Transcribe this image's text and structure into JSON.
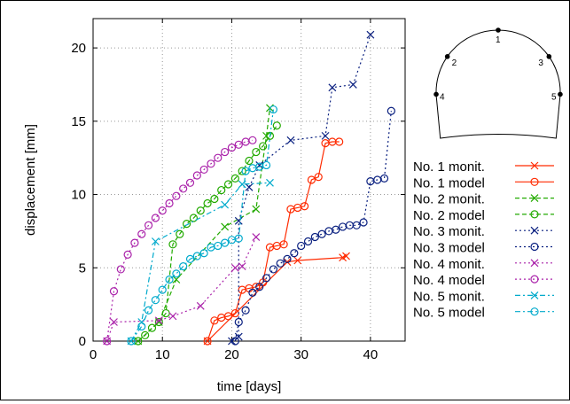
{
  "chart_data": {
    "type": "line",
    "xlabel": "time [days]",
    "ylabel": "displacement [mm]",
    "xlim": [
      0,
      45
    ],
    "ylim": [
      0,
      22
    ],
    "xticks": [
      0,
      10,
      20,
      30,
      40
    ],
    "yticks": [
      0,
      5,
      10,
      15,
      20
    ],
    "grid": true,
    "legend_position": "right",
    "series": [
      {
        "name": "No. 1 monit.",
        "color": "#ff2a00",
        "marker": "x",
        "dash": "solid",
        "x": [
          16.5,
          28,
          29.5,
          36,
          36.5
        ],
        "y": [
          0,
          5.4,
          5.5,
          5.7,
          5.8
        ]
      },
      {
        "name": "No. 1 model",
        "color": "#ff2a00",
        "marker": "o",
        "dash": "solid",
        "x": [
          16.5,
          17.5,
          18.5,
          19.5,
          20.5,
          21.5,
          22.5,
          23.5,
          24.5,
          25.5,
          26.5,
          27.5,
          28.5,
          29.5,
          30.5,
          31.5,
          32.5,
          33.5,
          34.5,
          35.5
        ],
        "y": [
          0,
          1.4,
          1.6,
          1.7,
          1.9,
          3.5,
          3.6,
          3.7,
          4.0,
          6.4,
          6.5,
          6.6,
          9.0,
          9.1,
          9.2,
          11.0,
          11.2,
          13.5,
          13.6,
          13.6
        ]
      },
      {
        "name": "No. 2 monit.",
        "color": "#22aa00",
        "marker": "x",
        "dash": "dash",
        "x": [
          6.5,
          9.5,
          12.0,
          19.0,
          23.5,
          25.0,
          25.5
        ],
        "y": [
          0,
          1.3,
          4.2,
          7.8,
          9.0,
          14.0,
          15.9
        ]
      },
      {
        "name": "No. 2 model",
        "color": "#22aa00",
        "marker": "o",
        "dash": "dash",
        "x": [
          6.5,
          7.5,
          8.5,
          9.5,
          10.5,
          11.5,
          12.5,
          13.5,
          14.5,
          15.5,
          16.5,
          17.5,
          18.5,
          19.5,
          20.5,
          21.5,
          22.5,
          23.5,
          24.5,
          25.5,
          26.5
        ],
        "y": [
          0,
          0.4,
          0.9,
          1.3,
          1.9,
          6.6,
          7.3,
          8.0,
          8.4,
          8.9,
          9.4,
          9.7,
          10.3,
          10.7,
          11.1,
          11.6,
          12.3,
          12.9,
          13.3,
          14.0,
          14.7
        ]
      },
      {
        "name": "No. 3 monit.",
        "color": "#0a2080",
        "marker": "x",
        "dash": "dot",
        "x": [
          20.0,
          21.0,
          21.0,
          22.5,
          24.0,
          28.5,
          33.5,
          34.5,
          37.5,
          40.0
        ],
        "y": [
          0,
          0.3,
          8.2,
          10.5,
          12.0,
          13.7,
          14.0,
          17.3,
          17.5,
          20.9
        ]
      },
      {
        "name": "No. 3 model",
        "color": "#0a2080",
        "marker": "o",
        "dash": "dot",
        "x": [
          20.5,
          21.0,
          22.0,
          23.0,
          24.0,
          25.0,
          26.0,
          27.0,
          28.0,
          29.0,
          30.0,
          31.0,
          32.0,
          33.0,
          34.0,
          35.0,
          36.0,
          37.0,
          38.0,
          39.0,
          40.0,
          41.0,
          42.0,
          43.0
        ],
        "y": [
          0,
          1.3,
          2.1,
          3.3,
          3.7,
          4.3,
          4.9,
          5.3,
          5.6,
          6.0,
          6.5,
          6.8,
          7.1,
          7.3,
          7.5,
          7.6,
          7.8,
          7.9,
          7.9,
          8.1,
          10.9,
          11.0,
          11.1,
          15.7
        ]
      },
      {
        "name": "No. 4 monit.",
        "color": "#aa22aa",
        "marker": "x",
        "dash": "dot",
        "x": [
          2.0,
          3.0,
          9.5,
          11.5,
          15.5,
          20.5,
          21.5,
          23.5
        ],
        "y": [
          0,
          1.3,
          1.4,
          1.7,
          2.4,
          5.0,
          5.1,
          7.1
        ]
      },
      {
        "name": "No. 4 model",
        "color": "#aa22aa",
        "marker": "o",
        "dash": "dot",
        "x": [
          2.0,
          3.0,
          4.0,
          5.0,
          6.0,
          7.0,
          8.0,
          9.0,
          10.0,
          11.0,
          12.0,
          13.0,
          14.0,
          15.0,
          16.0,
          17.0,
          18.0,
          19.0,
          20.0,
          21.0,
          22.0,
          23.0
        ],
        "y": [
          0,
          3.4,
          4.9,
          5.9,
          6.7,
          7.3,
          7.9,
          8.4,
          8.9,
          9.4,
          9.9,
          10.4,
          10.8,
          11.3,
          11.7,
          12.1,
          12.5,
          12.9,
          13.2,
          13.4,
          13.6,
          13.7
        ]
      },
      {
        "name": "No. 5 monit.",
        "color": "#00aacc",
        "marker": "x",
        "dash": "dashdot",
        "x": [
          5.5,
          7.0,
          9.0,
          19.0,
          21.5,
          25.5
        ],
        "y": [
          0,
          1.3,
          6.8,
          9.3,
          10.7,
          10.8
        ]
      },
      {
        "name": "No. 5 model",
        "color": "#00aacc",
        "marker": "o",
        "dash": "dashdot",
        "x": [
          5.5,
          7.0,
          8.0,
          9.0,
          10.0,
          11.0,
          12.0,
          13.0,
          14.0,
          15.0,
          16.0,
          17.0,
          18.0,
          19.0,
          20.0,
          21.0,
          22.0,
          23.0,
          24.0,
          25.0,
          26.0
        ],
        "y": [
          0,
          1.0,
          2.1,
          2.8,
          3.5,
          4.2,
          4.6,
          5.1,
          5.6,
          5.8,
          6.0,
          6.4,
          6.5,
          6.7,
          6.9,
          7.0,
          11.6,
          11.8,
          11.9,
          12.0,
          15.8
        ]
      }
    ],
    "inset": {
      "labels": [
        "1",
        "2",
        "3",
        "4",
        "5"
      ]
    }
  }
}
